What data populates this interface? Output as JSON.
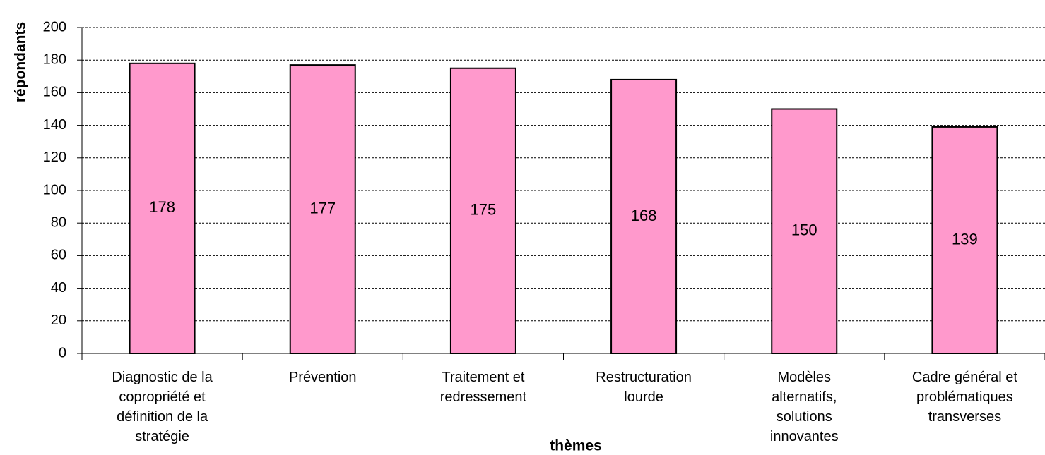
{
  "chart_data": {
    "type": "bar",
    "categories": [
      "Diagnostic de la\ncopropriété et\ndéfinition de la\nstratégie",
      "Prévention",
      "Traitement et\nredressement",
      "Restructuration\nlourde",
      "Modèles\nalternatifs,\nsolutions\ninnovantes",
      "Cadre général et\nproblématiques\ntransverses"
    ],
    "values": [
      178,
      177,
      175,
      168,
      150,
      139
    ],
    "color": "#ff99cc",
    "y_label": "répondants",
    "x_label": "thèmes",
    "ylim": [
      0,
      200
    ],
    "yticks": [
      0,
      20,
      40,
      60,
      80,
      100,
      120,
      140,
      160,
      180,
      200
    ],
    "grid": true
  }
}
